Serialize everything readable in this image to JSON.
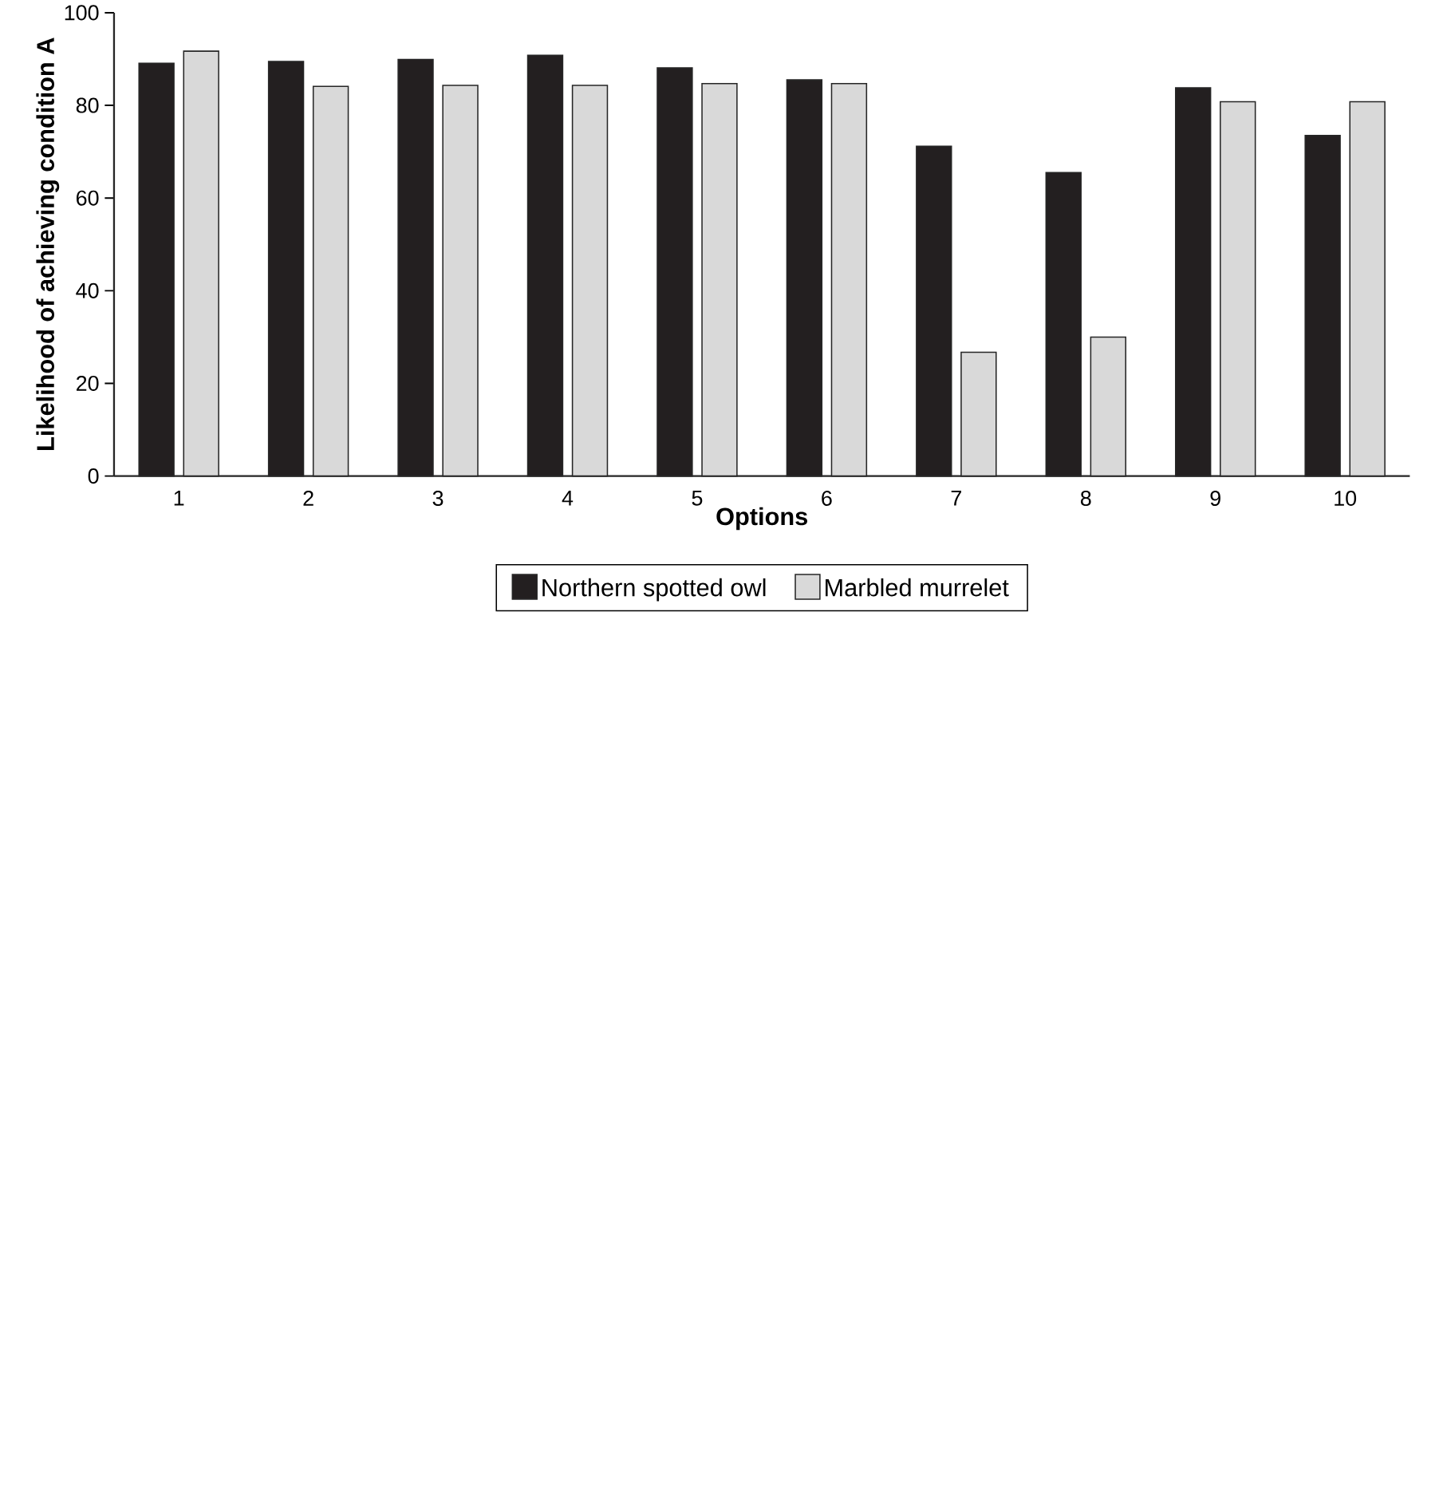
{
  "chart_data": {
    "type": "bar",
    "xlabel": "Options",
    "ylabel": "Likelihood of achieving condition A",
    "categories": [
      "1",
      "2",
      "3",
      "4",
      "5",
      "6",
      "7",
      "8",
      "9",
      "10"
    ],
    "series": [
      {
        "name": "Northern spotted owl",
        "color": "#231f20",
        "values": [
          89.1,
          89.5,
          89.9,
          90.8,
          88.1,
          85.5,
          71.2,
          65.5,
          83.8,
          73.5
        ]
      },
      {
        "name": "Marbled murrelet",
        "color": "#d9d9d9",
        "values": [
          91.7,
          84.1,
          84.3,
          84.3,
          84.7,
          84.7,
          26.7,
          30.0,
          80.8,
          80.8
        ]
      }
    ],
    "ylim": [
      0,
      100
    ],
    "yticks": [
      0,
      20,
      40,
      60,
      80,
      100
    ],
    "grid": false,
    "legend": "bottom"
  }
}
